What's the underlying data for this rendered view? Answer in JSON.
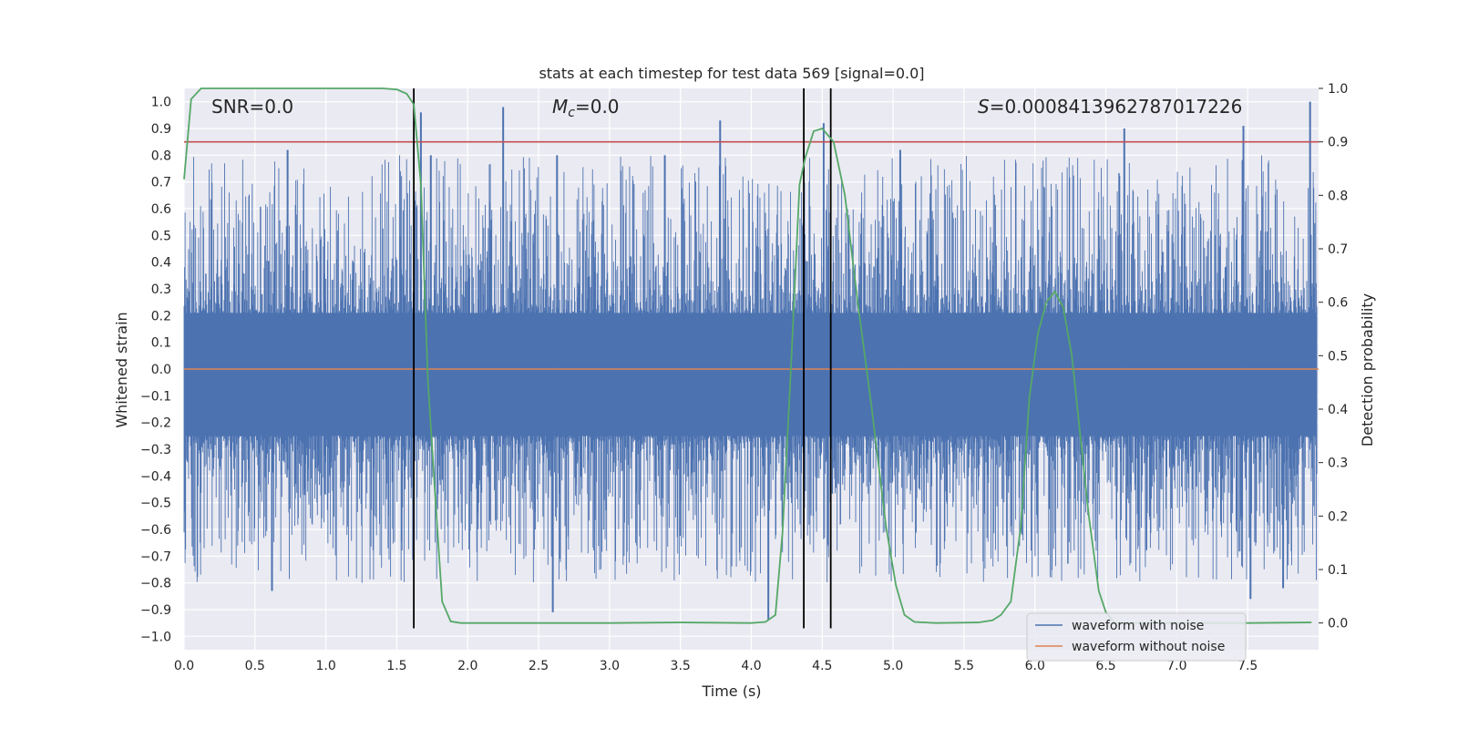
{
  "chart_data": {
    "type": "line",
    "title": "stats at each timestep for test data 569 [signal=0.0]",
    "xlabel": "Time (s)",
    "ylabel_left": "Whitened strain",
    "ylabel_right": "Detection probability",
    "xlim": [
      0.0,
      8.0
    ],
    "ylim_left": [
      -1.05,
      1.05
    ],
    "ylim_right": [
      -0.05,
      1.0
    ],
    "x_ticks": [
      "0.0",
      "0.5",
      "1.0",
      "1.5",
      "2.0",
      "2.5",
      "3.0",
      "3.5",
      "4.0",
      "4.5",
      "5.0",
      "5.5",
      "6.0",
      "6.5",
      "7.0",
      "7.5"
    ],
    "x_tick_values": [
      0.0,
      0.5,
      1.0,
      1.5,
      2.0,
      2.5,
      3.0,
      3.5,
      4.0,
      4.5,
      5.0,
      5.5,
      6.0,
      6.5,
      7.0,
      7.5
    ],
    "y_left_ticks": [
      "1.0",
      "0.9",
      "0.8",
      "0.7",
      "0.6",
      "0.5",
      "0.4",
      "0.3",
      "0.2",
      "0.1",
      "0.0",
      "−0.1",
      "−0.2",
      "−0.3",
      "−0.4",
      "−0.5",
      "−0.6",
      "−0.7",
      "−0.8",
      "−0.9",
      "−1.0"
    ],
    "y_left_tick_values": [
      1.0,
      0.9,
      0.8,
      0.7,
      0.6,
      0.5,
      0.4,
      0.3,
      0.2,
      0.1,
      0.0,
      -0.1,
      -0.2,
      -0.3,
      -0.4,
      -0.5,
      -0.6,
      -0.7,
      -0.8,
      -0.9,
      -1.0
    ],
    "y_right_ticks": [
      "1.0",
      "0.9",
      "0.8",
      "0.7",
      "0.6",
      "0.5",
      "0.4",
      "0.3",
      "0.2",
      "0.1",
      "0.0"
    ],
    "y_right_tick_values": [
      1.0,
      0.9,
      0.8,
      0.7,
      0.6,
      0.5,
      0.4,
      0.3,
      0.2,
      0.1,
      0.0
    ],
    "annotations": {
      "snr": "SNR=0.0",
      "mc_symbol": "M",
      "mc_sub": "c",
      "mc_value": "=0.0",
      "s_symbol": "S",
      "s_value": "=0.0008413962787017226"
    },
    "legend": {
      "placement": "lower-right",
      "entries": [
        "waveform with noise",
        "waveform without noise"
      ]
    },
    "series": [
      {
        "name": "waveform with noise",
        "axis": "left",
        "color": "#4c72b0",
        "description_envelope": "dense noise spanning roughly -0.9 to 1.0",
        "spikes": [
          {
            "x": 0.73,
            "y": 0.82
          },
          {
            "x": 1.67,
            "y": 0.96
          },
          {
            "x": 1.74,
            "y": 0.8
          },
          {
            "x": 2.25,
            "y": 0.98
          },
          {
            "x": 2.63,
            "y": 0.8
          },
          {
            "x": 3.39,
            "y": 0.8
          },
          {
            "x": 3.78,
            "y": 0.93
          },
          {
            "x": 4.51,
            "y": 0.92
          },
          {
            "x": 5.05,
            "y": 0.82
          },
          {
            "x": 6.63,
            "y": 0.9
          },
          {
            "x": 7.47,
            "y": 0.91
          },
          {
            "x": 7.94,
            "y": 1.0
          },
          {
            "x": 0.62,
            "y": -0.83
          },
          {
            "x": 2.6,
            "y": -0.91
          },
          {
            "x": 4.12,
            "y": -0.94
          },
          {
            "x": 7.52,
            "y": -0.86
          },
          {
            "x": 7.75,
            "y": -0.82
          }
        ]
      },
      {
        "name": "waveform without noise",
        "axis": "left",
        "color": "#dd8452",
        "x": [
          0.0,
          8.0
        ],
        "y": [
          0.0,
          0.0
        ]
      },
      {
        "name": "detection probability",
        "axis": "right",
        "color": "#55a868",
        "x": [
          0.0,
          0.05,
          0.12,
          0.2,
          0.5,
          1.0,
          1.4,
          1.5,
          1.57,
          1.62,
          1.67,
          1.72,
          1.78,
          1.82,
          1.88,
          1.95,
          2.5,
          3.0,
          3.5,
          4.0,
          4.1,
          4.17,
          4.22,
          4.28,
          4.34,
          4.38,
          4.44,
          4.5,
          4.58,
          4.66,
          4.75,
          4.85,
          4.95,
          5.02,
          5.08,
          5.15,
          5.3,
          5.6,
          5.7,
          5.76,
          5.83,
          5.9,
          5.96,
          6.02,
          6.08,
          6.14,
          6.2,
          6.26,
          6.32,
          6.38,
          6.45,
          6.5,
          6.56,
          6.62,
          7.0,
          7.5,
          7.95
        ],
        "y": [
          0.83,
          0.98,
          1.0,
          1.0,
          1.0,
          1.0,
          1.0,
          0.998,
          0.99,
          0.97,
          0.82,
          0.45,
          0.2,
          0.04,
          0.003,
          0.0,
          0.0,
          0.0,
          0.001,
          0.0,
          0.002,
          0.015,
          0.17,
          0.48,
          0.82,
          0.87,
          0.92,
          0.925,
          0.9,
          0.8,
          0.6,
          0.4,
          0.18,
          0.07,
          0.015,
          0.002,
          0.0,
          0.001,
          0.005,
          0.015,
          0.04,
          0.18,
          0.42,
          0.54,
          0.6,
          0.62,
          0.59,
          0.5,
          0.35,
          0.2,
          0.06,
          0.02,
          0.0,
          0.0,
          0.0,
          0.0,
          0.001
        ]
      }
    ],
    "threshold_line": {
      "axis": "right",
      "y": 0.9,
      "color": "#c44e52"
    },
    "vertical_lines": {
      "x": [
        1.62,
        4.37,
        4.56
      ],
      "color": "#000000"
    },
    "grid": true,
    "background": "#eaeaf2"
  }
}
